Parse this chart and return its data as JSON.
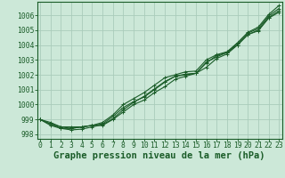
{
  "bg_color": "#cce8d8",
  "grid_color": "#aaccbb",
  "line_color": "#1a5c28",
  "xlabel": "Graphe pression niveau de la mer (hPa)",
  "xlabel_fontsize": 7.5,
  "tick_fontsize": 5.8,
  "ylim": [
    997.7,
    1006.9
  ],
  "xlim": [
    -0.3,
    23.3
  ],
  "yticks": [
    998,
    999,
    1000,
    1001,
    1002,
    1003,
    1004,
    1005,
    1006
  ],
  "xticks": [
    0,
    1,
    2,
    3,
    4,
    5,
    6,
    7,
    8,
    9,
    10,
    11,
    12,
    13,
    14,
    15,
    16,
    17,
    18,
    19,
    20,
    21,
    22,
    23
  ],
  "series": [
    [
      999.0,
      998.7,
      998.5,
      998.5,
      998.5,
      998.6,
      998.7,
      999.2,
      999.8,
      1000.2,
      1000.5,
      1001.0,
      1001.5,
      1001.9,
      1002.0,
      1002.1,
      1002.8,
      1003.3,
      1003.5,
      1004.1,
      1004.8,
      1005.1,
      1005.95,
      1006.45
    ],
    [
      999.0,
      998.8,
      998.5,
      998.4,
      998.5,
      998.6,
      998.6,
      999.0,
      999.5,
      1000.0,
      1000.3,
      1000.8,
      1001.2,
      1001.7,
      1001.9,
      1002.1,
      1002.5,
      1003.1,
      1003.4,
      1004.0,
      1004.7,
      1005.0,
      1005.85,
      1006.3
    ],
    [
      999.0,
      998.7,
      998.4,
      998.4,
      998.5,
      998.6,
      998.8,
      999.3,
      1000.0,
      1000.4,
      1000.8,
      1001.3,
      1001.8,
      1002.0,
      1002.2,
      1002.25,
      1003.0,
      1003.35,
      1003.55,
      1004.15,
      1004.85,
      1005.2,
      1006.05,
      1006.65
    ],
    [
      999.0,
      998.6,
      998.4,
      998.3,
      998.35,
      998.5,
      998.65,
      999.05,
      999.65,
      1000.15,
      1000.55,
      1001.05,
      1001.55,
      1001.9,
      1002.05,
      1002.1,
      1002.85,
      1003.2,
      1003.5,
      1004.0,
      1004.7,
      1004.95,
      1005.8,
      1006.2
    ]
  ]
}
